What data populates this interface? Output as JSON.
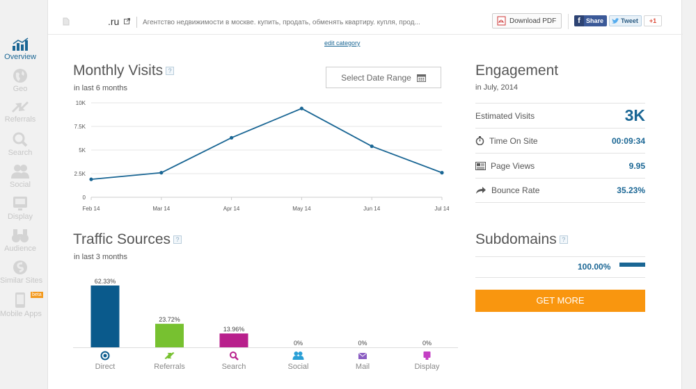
{
  "sidebar": {
    "items": [
      {
        "label": "Overview",
        "icon": "overview-icon",
        "active": true
      },
      {
        "label": "Geo",
        "icon": "globe-icon"
      },
      {
        "label": "Referrals",
        "icon": "referrals-icon"
      },
      {
        "label": "Search",
        "icon": "search-icon"
      },
      {
        "label": "Social",
        "icon": "social-icon"
      },
      {
        "label": "Display",
        "icon": "display-icon"
      },
      {
        "label": "Audience",
        "icon": "binoculars-icon"
      },
      {
        "label": "Similar Sites",
        "icon": "similar-sites-icon"
      },
      {
        "label": "Mobile Apps",
        "icon": "mobile-icon",
        "badge": "beta"
      }
    ]
  },
  "header": {
    "site": ".ru",
    "description": "Агентство недвижимости в москве. купить, продать, обменять квартиру. купля, прод...",
    "download_pdf": "Download PDF",
    "share": "Share",
    "tweet": "Tweet",
    "gplus": "+1",
    "edit_category": "edit category"
  },
  "monthly_visits": {
    "title": "Monthly Visits",
    "help": "?",
    "subtitle": "in last 6 months",
    "date_button": "Select Date Range"
  },
  "traffic_sources": {
    "title": "Traffic Sources",
    "help": "?",
    "subtitle": "in last 3 months"
  },
  "engagement": {
    "title": "Engagement",
    "subtitle": "in July, 2014",
    "rows": [
      {
        "label": "Estimated Visits",
        "value": "3K",
        "icon": ""
      },
      {
        "label": "Time On Site",
        "value": "00:09:34",
        "icon": "stopwatch-icon"
      },
      {
        "label": "Page Views",
        "value": "9.95",
        "icon": "page-views-icon"
      },
      {
        "label": "Bounce Rate",
        "value": "35.23%",
        "icon": "bounce-arrow-icon"
      }
    ]
  },
  "subdomains": {
    "title": "Subdomains",
    "help": "?",
    "percent": "100.00%",
    "share": 1.0
  },
  "get_more": "GET MORE",
  "colors": {
    "accent": "#1a6694",
    "orange": "#f9960f",
    "direct": "#0a5a8c",
    "referrals": "#77c130",
    "search": "#b8208c",
    "social": "#2a9fd6",
    "mail": "#8a5cc2",
    "display": "#c43fc4"
  },
  "chart_data": [
    {
      "type": "line",
      "x": [
        "Feb 14",
        "Mar 14",
        "Apr 14",
        "May 14",
        "Jun 14",
        "Jul 14"
      ],
      "values": [
        1900,
        2600,
        6300,
        9400,
        5400,
        2600
      ],
      "yticks": [
        "10K",
        "7.5K",
        "5K",
        "2.5K",
        "0"
      ],
      "ylim": [
        0,
        10000
      ],
      "grid": true
    },
    {
      "type": "bar",
      "categories": [
        "Direct",
        "Referrals",
        "Search",
        "Social",
        "Mail",
        "Display"
      ],
      "values": [
        62.33,
        23.72,
        13.96,
        0,
        0,
        0
      ],
      "labels": [
        "62.33%",
        "23.72%",
        "13.96%",
        "0%",
        "0%",
        "0%"
      ],
      "ylim": [
        0,
        62.33
      ]
    }
  ]
}
